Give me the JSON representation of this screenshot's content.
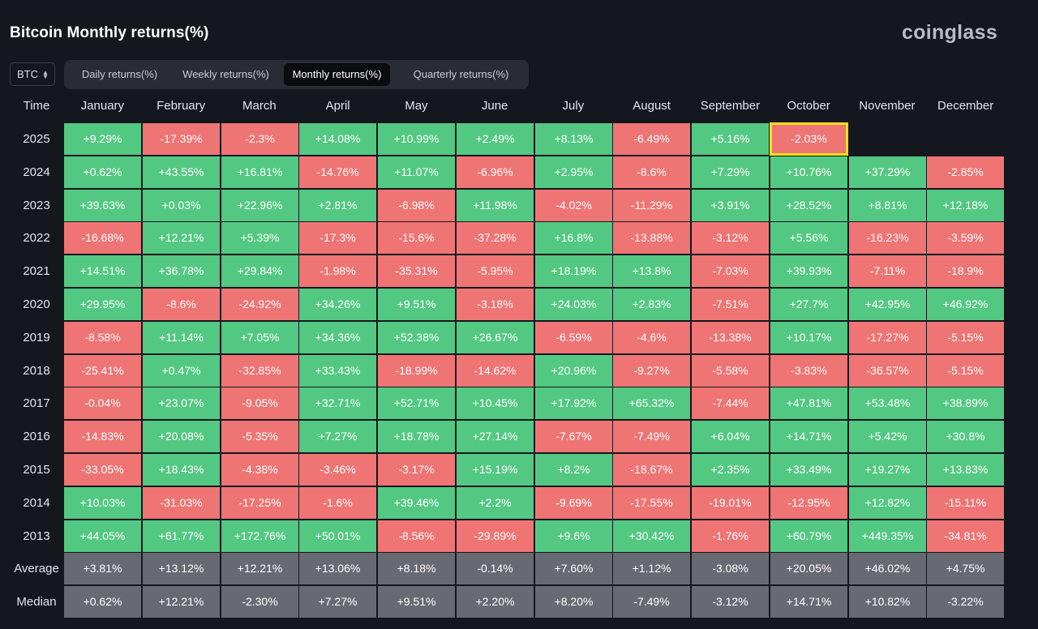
{
  "title": "Bitcoin Monthly returns(%)",
  "brand": "coinglass",
  "coin_select": {
    "value": "BTC"
  },
  "tabs": [
    {
      "label": "Daily returns(%)",
      "active": false
    },
    {
      "label": "Weekly returns(%)",
      "active": false
    },
    {
      "label": "Monthly returns(%)",
      "active": true
    },
    {
      "label": "Quarterly returns(%)",
      "active": false
    }
  ],
  "colors": {
    "positive": "#53c882",
    "negative": "#ef7474",
    "summary": "#686a72",
    "highlight": "#f3e01a",
    "background": "#15171e"
  },
  "table": {
    "corner_label": "Time",
    "months": [
      "January",
      "February",
      "March",
      "April",
      "May",
      "June",
      "July",
      "August",
      "September",
      "October",
      "November",
      "December"
    ],
    "highlighted": {
      "row_label": "2025",
      "month": "October"
    },
    "rows": [
      {
        "label": "2025",
        "values": [
          "+9.29%",
          "-17.39%",
          "-2.3%",
          "+14.08%",
          "+10.99%",
          "+2.49%",
          "+8.13%",
          "-6.49%",
          "+5.16%",
          "-2.03%",
          "",
          ""
        ]
      },
      {
        "label": "2024",
        "values": [
          "+0.62%",
          "+43.55%",
          "+16.81%",
          "-14.76%",
          "+11.07%",
          "-6.96%",
          "+2.95%",
          "-8.6%",
          "+7.29%",
          "+10.76%",
          "+37.29%",
          "-2.85%"
        ]
      },
      {
        "label": "2023",
        "values": [
          "+39.63%",
          "+0.03%",
          "+22.96%",
          "+2.81%",
          "-6.98%",
          "+11.98%",
          "-4.02%",
          "-11.29%",
          "+3.91%",
          "+28.52%",
          "+8.81%",
          "+12.18%"
        ]
      },
      {
        "label": "2022",
        "values": [
          "-16.68%",
          "+12.21%",
          "+5.39%",
          "-17.3%",
          "-15.6%",
          "-37.28%",
          "+16.8%",
          "-13.88%",
          "-3.12%",
          "+5.56%",
          "-16.23%",
          "-3.59%"
        ]
      },
      {
        "label": "2021",
        "values": [
          "+14.51%",
          "+36.78%",
          "+29.84%",
          "-1.98%",
          "-35.31%",
          "-5.95%",
          "+18.19%",
          "+13.8%",
          "-7.03%",
          "+39.93%",
          "-7.11%",
          "-18.9%"
        ]
      },
      {
        "label": "2020",
        "values": [
          "+29.95%",
          "-8.6%",
          "-24.92%",
          "+34.26%",
          "+9.51%",
          "-3.18%",
          "+24.03%",
          "+2.83%",
          "-7.51%",
          "+27.7%",
          "+42.95%",
          "+46.92%"
        ]
      },
      {
        "label": "2019",
        "values": [
          "-8.58%",
          "+11.14%",
          "+7.05%",
          "+34.36%",
          "+52.38%",
          "+26.67%",
          "-6.59%",
          "-4.6%",
          "-13.38%",
          "+10.17%",
          "-17.27%",
          "-5.15%"
        ]
      },
      {
        "label": "2018",
        "values": [
          "-25.41%",
          "+0.47%",
          "-32.85%",
          "+33.43%",
          "-18.99%",
          "-14.62%",
          "+20.96%",
          "-9.27%",
          "-5.58%",
          "-3.83%",
          "-36.57%",
          "-5.15%"
        ]
      },
      {
        "label": "2017",
        "values": [
          "-0.04%",
          "+23.07%",
          "-9.05%",
          "+32.71%",
          "+52.71%",
          "+10.45%",
          "+17.92%",
          "+65.32%",
          "-7.44%",
          "+47.81%",
          "+53.48%",
          "+38.89%"
        ]
      },
      {
        "label": "2016",
        "values": [
          "-14.83%",
          "+20.08%",
          "-5.35%",
          "+7.27%",
          "+18.78%",
          "+27.14%",
          "-7.67%",
          "-7.49%",
          "+6.04%",
          "+14.71%",
          "+5.42%",
          "+30.8%"
        ]
      },
      {
        "label": "2015",
        "values": [
          "-33.05%",
          "+18.43%",
          "-4.38%",
          "-3.46%",
          "-3.17%",
          "+15.19%",
          "+8.2%",
          "-18.67%",
          "+2.35%",
          "+33.49%",
          "+19.27%",
          "+13.83%"
        ]
      },
      {
        "label": "2014",
        "values": [
          "+10.03%",
          "-31.03%",
          "-17.25%",
          "-1.6%",
          "+39.46%",
          "+2.2%",
          "-9.69%",
          "-17.55%",
          "-19.01%",
          "-12.95%",
          "+12.82%",
          "-15.11%"
        ]
      },
      {
        "label": "2013",
        "values": [
          "+44.05%",
          "+61.77%",
          "+172.76%",
          "+50.01%",
          "-8.56%",
          "-29.89%",
          "+9.6%",
          "+30.42%",
          "-1.76%",
          "+60.79%",
          "+449.35%",
          "-34.81%"
        ]
      },
      {
        "label": "Average",
        "summary": true,
        "values": [
          "+3.81%",
          "+13.12%",
          "+12.21%",
          "+13.06%",
          "+8.18%",
          "-0.14%",
          "+7.60%",
          "+1.12%",
          "-3.08%",
          "+20.05%",
          "+46.02%",
          "+4.75%"
        ]
      },
      {
        "label": "Median",
        "summary": true,
        "values": [
          "+0.62%",
          "+12.21%",
          "-2.30%",
          "+7.27%",
          "+9.51%",
          "+2.20%",
          "+8.20%",
          "-7.49%",
          "-3.12%",
          "+14.71%",
          "+10.82%",
          "-3.22%"
        ]
      }
    ]
  }
}
